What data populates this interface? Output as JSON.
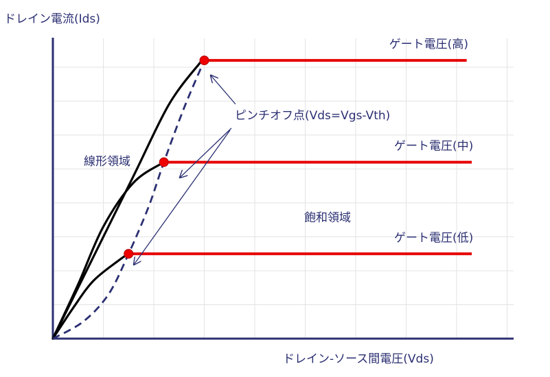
{
  "chart_data": {
    "type": "line",
    "title": "",
    "ylabel": "ドレイン電流(Ids)",
    "xlabel": "ドレイン-ソース間電圧(Vds)",
    "x_range": [
      0,
      10
    ],
    "y_range": [
      0,
      10
    ],
    "grid": true,
    "colors": {
      "axis": "#2b2f72",
      "curve": "#000000",
      "saturation": "#e60000",
      "pinchoff_line": "#2b2f72",
      "label": "#2b2f72",
      "grid": "#e3e3e3"
    },
    "curves": [
      {
        "label": "ゲート電圧(高)",
        "linear": [
          [
            0,
            0
          ],
          [
            0.8,
            2.4
          ],
          [
            1.6,
            4.8
          ],
          [
            2.3,
            6.9
          ],
          [
            2.9,
            8.1
          ],
          [
            3.0,
            8.2
          ]
        ],
        "saturation": [
          [
            3.0,
            8.2
          ],
          [
            8.2,
            8.2
          ]
        ]
      },
      {
        "label": "ゲート電圧(中)",
        "linear": [
          [
            0,
            0
          ],
          [
            0.5,
            1.6
          ],
          [
            1.0,
            3.3
          ],
          [
            1.6,
            4.6
          ],
          [
            2.2,
            5.2
          ]
        ],
        "saturation": [
          [
            2.2,
            5.2
          ],
          [
            8.3,
            5.2
          ]
        ]
      },
      {
        "label": "ゲート電圧(低)",
        "linear": [
          [
            0,
            0
          ],
          [
            0.4,
            0.9
          ],
          [
            0.8,
            1.7
          ],
          [
            1.3,
            2.3
          ],
          [
            1.5,
            2.5
          ]
        ],
        "saturation": [
          [
            1.5,
            2.5
          ],
          [
            8.3,
            2.5
          ]
        ]
      }
    ],
    "pinchoff_curve": [
      [
        0,
        0
      ],
      [
        0.6,
        0.5
      ],
      [
        1.1,
        1.3
      ],
      [
        1.5,
        2.5
      ],
      [
        1.9,
        3.9
      ],
      [
        2.2,
        5.2
      ],
      [
        2.6,
        6.8
      ],
      [
        3.0,
        8.2
      ]
    ],
    "pinchoff_points": [
      [
        3.0,
        8.2
      ],
      [
        2.2,
        5.2
      ],
      [
        1.5,
        2.5
      ]
    ],
    "annotations": {
      "pinchoff": "ピンチオフ点(Vds=Vgs-Vth)",
      "linear_region": "線形領域",
      "saturation_region": "飽和領域"
    }
  }
}
